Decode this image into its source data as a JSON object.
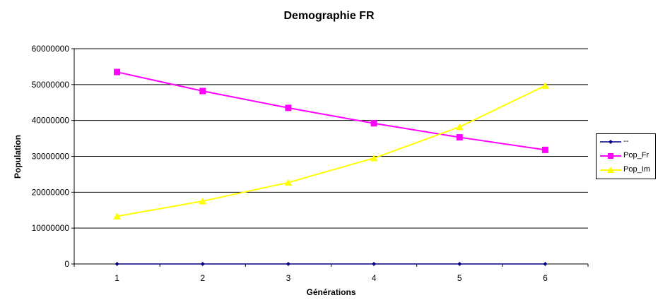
{
  "chart_data": {
    "type": "line",
    "title": "Demographie FR",
    "xlabel": "Générations",
    "ylabel": "Population",
    "categories": [
      "1",
      "2",
      "3",
      "4",
      "5",
      "6"
    ],
    "ylim": [
      0,
      60000000
    ],
    "yticks": [
      0,
      10000000,
      20000000,
      30000000,
      40000000,
      50000000,
      60000000
    ],
    "ytick_labels": [
      "0",
      "10000000",
      "20000000",
      "30000000",
      "40000000",
      "50000000",
      "60000000"
    ],
    "grid": "horizontal",
    "legend": "right",
    "series": [
      {
        "name": "--",
        "values": [
          0,
          0,
          0,
          0,
          0,
          0
        ],
        "color": "#000080",
        "marker": "diamond"
      },
      {
        "name": "Pop_Fr",
        "values": [
          53500000,
          48200000,
          43500000,
          39200000,
          35300000,
          31800000
        ],
        "color": "#FF00FF",
        "marker": "square"
      },
      {
        "name": "Pop_Im",
        "values": [
          13300000,
          17500000,
          22700000,
          29500000,
          38200000,
          49700000
        ],
        "color": "#FFFF00",
        "marker": "triangle"
      }
    ]
  }
}
